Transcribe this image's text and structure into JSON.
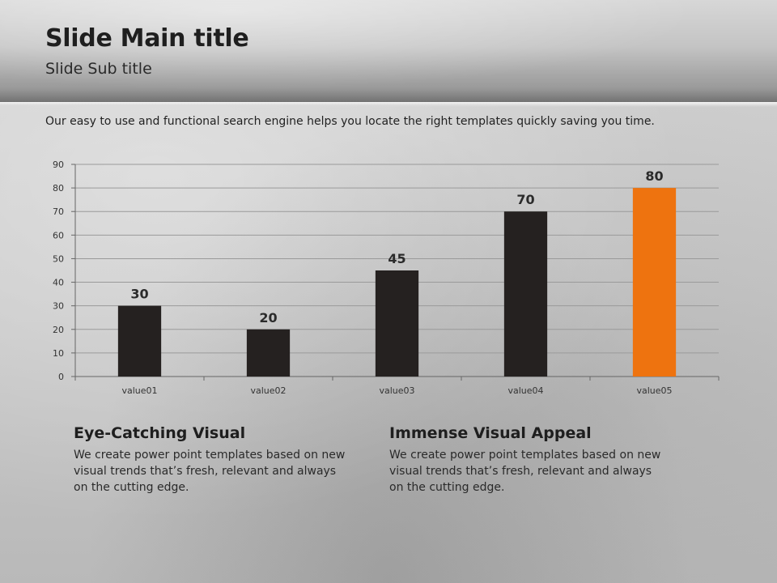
{
  "slide": {
    "title": "Slide Main title",
    "subtitle": "Slide Sub title",
    "intro": "Our easy to use and functional search engine helps you locate the right templates quickly saving you time."
  },
  "features": [
    {
      "heading": "Eye-Catching Visual",
      "body": "We create power point templates based on new visual trends that’s fresh, relevant and always on the cutting edge."
    },
    {
      "heading": "Immense Visual Appeal",
      "body": "We create power point templates based on new visual trends that’s fresh, relevant and always on the cutting edge."
    }
  ],
  "chart_data": {
    "type": "bar",
    "categories": [
      "value01",
      "value02",
      "value03",
      "value04",
      "value05"
    ],
    "values": [
      30,
      20,
      45,
      70,
      80
    ],
    "ylim": [
      0,
      90
    ],
    "yticks": [
      0,
      10,
      20,
      30,
      40,
      50,
      60,
      70,
      80,
      90
    ],
    "grid": true,
    "legend": "none",
    "colors": {
      "default": "#252120",
      "highlight": "#ee730f",
      "highlight_index": 4,
      "grid": "#9a9a9a",
      "axis": "#666666"
    }
  }
}
